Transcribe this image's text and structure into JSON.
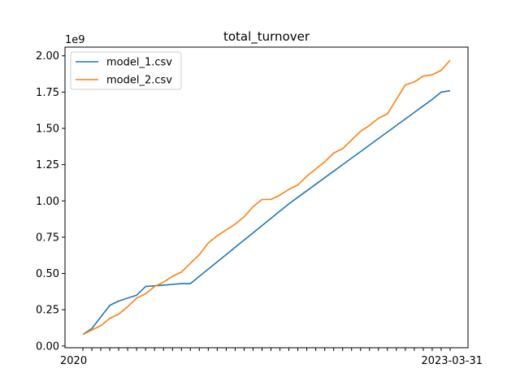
{
  "chart_data": {
    "type": "line",
    "title": "total_turnover",
    "xlabel": "",
    "ylabel": "",
    "y_offset_label": "1e9",
    "ylim": [
      -0.012,
      2.06
    ],
    "yticks": [
      "0.00",
      "0.25",
      "0.50",
      "0.75",
      "1.00",
      "1.25",
      "1.50",
      "1.75",
      "2.00"
    ],
    "ytick_values": [
      0.0,
      0.25,
      0.5,
      0.75,
      1.0,
      1.25,
      1.5,
      1.75,
      2.0
    ],
    "x_first_tick_label": "2020",
    "x_last_tick_label": "2023-03-31",
    "x_tick_count": 42,
    "grid": false,
    "legend_position": "upper-left",
    "series": [
      {
        "name": "model_1.csv",
        "color": "#1f77b4",
        "values": [
          0.08,
          0.12,
          0.2,
          0.28,
          0.31,
          0.33,
          0.35,
          0.41,
          0.415,
          0.42,
          0.425,
          0.43,
          0.43,
          0.48,
          0.53,
          0.58,
          0.63,
          0.68,
          0.73,
          0.78,
          0.83,
          0.88,
          0.93,
          0.98,
          1.025,
          1.07,
          1.115,
          1.16,
          1.205,
          1.25,
          1.295,
          1.34,
          1.385,
          1.43,
          1.475,
          1.52,
          1.565,
          1.61,
          1.655,
          1.7,
          1.75,
          1.76
        ]
      },
      {
        "name": "model_2.csv",
        "color": "#ff7f0e",
        "values": [
          0.08,
          0.11,
          0.14,
          0.19,
          0.22,
          0.27,
          0.33,
          0.36,
          0.41,
          0.44,
          0.48,
          0.51,
          0.57,
          0.63,
          0.71,
          0.76,
          0.8,
          0.84,
          0.89,
          0.96,
          1.01,
          1.01,
          1.04,
          1.08,
          1.11,
          1.17,
          1.22,
          1.27,
          1.33,
          1.36,
          1.42,
          1.48,
          1.52,
          1.57,
          1.6,
          1.7,
          1.8,
          1.82,
          1.86,
          1.87,
          1.9,
          1.97
        ]
      }
    ]
  }
}
